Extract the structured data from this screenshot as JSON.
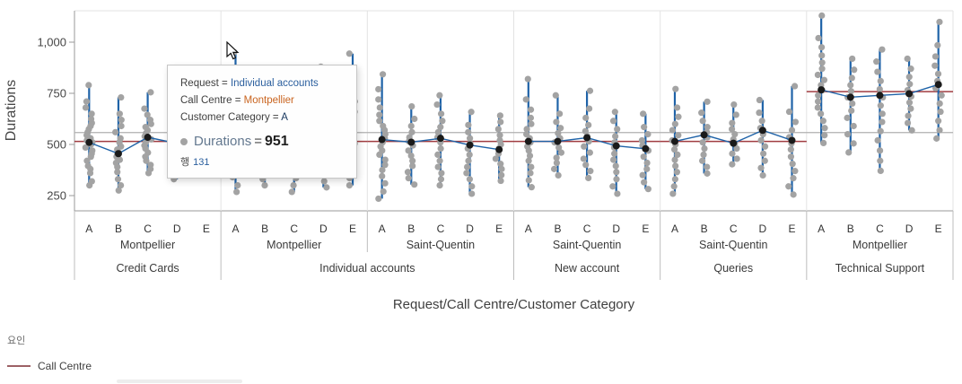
{
  "colors": {
    "point_gray": "#a3a3a3",
    "range_bar_blue": "#1f63a8",
    "mean_black": "#1a1a1a",
    "factor_line_red": "#a03c40",
    "reference_line_gray": "#b0b0b0",
    "grid_gray": "#e3e3e3",
    "axis_gray": "#9a9a9a",
    "legend_swatch": "#9d6165"
  },
  "tooltip": {
    "lines": [
      {
        "label": "Request =",
        "value": "Individual accounts"
      },
      {
        "label": "Call Centre =",
        "value": "Montpellier"
      },
      {
        "label": "Customer Category =",
        "value": "A"
      }
    ],
    "metric": {
      "name": "Durations",
      "eq": "=",
      "value": "951"
    },
    "row_label": "행",
    "row_value": "131"
  },
  "chart_data": {
    "type": "scatter",
    "title": "",
    "ylabel": "Durations",
    "xlabel": "Request/Call Centre/Customer Category",
    "ylim": [
      175,
      1153
    ],
    "y_ticks": [
      {
        "v": 250,
        "label": "250"
      },
      {
        "v": 500,
        "label": "500"
      },
      {
        "v": 750,
        "label": "750"
      },
      {
        "v": 1000,
        "label": "1,000"
      }
    ],
    "reference_line": 558,
    "legend": {
      "title": "요인",
      "items": [
        {
          "label": "Call Centre"
        }
      ]
    },
    "groups": [
      {
        "request": "Credit Cards",
        "call_centre": "Montpellier",
        "factor_line": 515,
        "categories": [
          {
            "label": "A",
            "mean": 510,
            "points": [
              300,
              320,
              360,
              380,
              395,
              420,
              440,
              455,
              470,
              485,
              500,
              510,
              520,
              530,
              545,
              560,
              575,
              590,
              605,
              625,
              650,
              680,
              710,
              790
            ]
          },
          {
            "label": "B",
            "mean": 455,
            "points": [
              275,
              300,
              330,
              365,
              390,
              410,
              425,
              440,
              450,
              460,
              475,
              490,
              510,
              530,
              560,
              590,
              620,
              650,
              730
            ]
          },
          {
            "label": "C",
            "mean": 535,
            "points": [
              360,
              380,
              400,
              420,
              440,
              460,
              480,
              495,
              510,
              525,
              540,
              555,
              570,
              585,
              600,
              620,
              645,
              675,
              755
            ]
          },
          {
            "label": "D",
            "mean": 505,
            "points": [
              330,
              360,
              390,
              415,
              435,
              455,
              475,
              495,
              515,
              535,
              555,
              575,
              600,
              630,
              670,
              740
            ]
          },
          {
            "label": "E",
            "mean": 510,
            "points": [
              360,
              385,
              410,
              430,
              450,
              470,
              490,
              510,
              530,
              550,
              570,
              595,
              625,
              660,
              750
            ]
          }
        ]
      },
      {
        "request": "Individual accounts",
        "call_centre": "Montpellier",
        "factor_line": 515,
        "categories": [
          {
            "label": "A",
            "mean": 515,
            "points": [
              268,
              300,
              340,
              370,
              395,
              415,
              435,
              455,
              475,
              495,
              515,
              535,
              555,
              575,
              600,
              630,
              665,
              705,
              760,
              951
            ]
          },
          {
            "label": "B",
            "mean": 505,
            "points": [
              300,
              330,
              360,
              390,
              415,
              435,
              455,
              475,
              495,
              515,
              535,
              560,
              590,
              625,
              700
            ]
          },
          {
            "label": "C",
            "mean": 510,
            "points": [
              268,
              300,
              335,
              365,
              390,
              415,
              440,
              465,
              490,
              515,
              540,
              565,
              595,
              630,
              675,
              750
            ]
          },
          {
            "label": "D",
            "mean": 520,
            "points": [
              290,
              320,
              350,
              380,
              410,
              440,
              465,
              490,
              515,
              540,
              565,
              595,
              630,
              670,
              720,
              880
            ]
          },
          {
            "label": "E",
            "mean": 520,
            "points": [
              300,
              335,
              365,
              395,
              425,
              455,
              480,
              505,
              530,
              555,
              585,
              620,
              660,
              710,
              790,
              944
            ]
          }
        ]
      },
      {
        "request": "Individual accounts",
        "call_centre": "Saint-Quentin",
        "factor_line": 515,
        "categories": [
          {
            "label": "A",
            "mean": 524,
            "points": [
              235,
              270,
              310,
              345,
              375,
              400,
              425,
              450,
              470,
              490,
              510,
              530,
              550,
              570,
              590,
              615,
              645,
              680,
              720,
              770,
              843
            ]
          },
          {
            "label": "B",
            "mean": 511,
            "points": [
              304,
              335,
              365,
              395,
              420,
              445,
              470,
              495,
              515,
              535,
              560,
              590,
              625,
              686
            ]
          },
          {
            "label": "C",
            "mean": 530,
            "points": [
              300,
              330,
              360,
              390,
              420,
              450,
              480,
              510,
              535,
              560,
              585,
              615,
              650,
              695,
              740
            ]
          },
          {
            "label": "D",
            "mean": 497,
            "points": [
              259,
              295,
              330,
              360,
              390,
              420,
              450,
              480,
              505,
              530,
              560,
              595,
              659
            ]
          },
          {
            "label": "E",
            "mean": 475,
            "points": [
              322,
              350,
              380,
              405,
              430,
              455,
              480,
              500,
              520,
              545,
              575,
              610,
              641
            ]
          }
        ]
      },
      {
        "request": "New account",
        "call_centre": "Saint-Quentin",
        "factor_line": 515,
        "categories": [
          {
            "label": "A",
            "mean": 515,
            "points": [
              291,
              325,
              360,
              390,
              420,
              445,
              470,
              490,
              510,
              530,
              550,
              575,
              600,
              630,
              670,
              720,
              820
            ]
          },
          {
            "label": "B",
            "mean": 515,
            "points": [
              349,
              380,
              410,
              435,
              460,
              485,
              510,
              530,
              555,
              580,
              610,
              650,
              740
            ]
          },
          {
            "label": "C",
            "mean": 533,
            "points": [
              336,
              370,
              400,
              430,
              460,
              490,
              515,
              540,
              565,
              595,
              630,
              675,
              762
            ]
          },
          {
            "label": "D",
            "mean": 493,
            "points": [
              259,
              295,
              330,
              365,
              395,
              425,
              455,
              485,
              510,
              540,
              575,
              615,
              659
            ]
          },
          {
            "label": "E",
            "mean": 479,
            "points": [
              282,
              315,
              350,
              380,
              410,
              440,
              470,
              495,
              520,
              550,
              585,
              650
            ]
          }
        ]
      },
      {
        "request": "Queries",
        "call_centre": "Saint-Quentin",
        "factor_line": 515,
        "categories": [
          {
            "label": "A",
            "mean": 515,
            "points": [
              259,
              295,
              330,
              365,
              395,
              425,
              450,
              475,
              500,
              520,
              545,
              570,
              600,
              635,
              680,
              771
            ]
          },
          {
            "label": "B",
            "mean": 547,
            "points": [
              358,
              390,
              420,
              450,
              480,
              510,
              535,
              560,
              585,
              615,
              655,
              709
            ]
          },
          {
            "label": "C",
            "mean": 506,
            "points": [
              403,
              430,
              455,
              480,
              505,
              525,
              550,
              575,
              605,
              645,
              695
            ]
          },
          {
            "label": "D",
            "mean": 569,
            "points": [
              349,
              385,
              420,
              455,
              490,
              520,
              550,
              580,
              615,
              655,
              717
            ]
          },
          {
            "label": "E",
            "mean": 520,
            "points": [
              255,
              295,
              335,
              370,
              405,
              440,
              475,
              505,
              535,
              570,
              610,
              660,
              785
            ]
          }
        ]
      },
      {
        "request": "Technical Support",
        "call_centre": "Montpellier",
        "factor_line": 758,
        "categories": [
          {
            "label": "A",
            "mean": 767,
            "points": [
              507,
              545,
              580,
              615,
              650,
              680,
              710,
              740,
              765,
              790,
              815,
              840,
              870,
              900,
              935,
              975,
              1020,
              1130
            ]
          },
          {
            "label": "B",
            "mean": 731,
            "points": [
              461,
              505,
              550,
              590,
              630,
              665,
              700,
              730,
              760,
              790,
              825,
              865,
              919
            ]
          },
          {
            "label": "C",
            "mean": 740,
            "points": [
              371,
              420,
              470,
              520,
              565,
              610,
              650,
              690,
              730,
              770,
              810,
              855,
              905,
              964
            ]
          },
          {
            "label": "D",
            "mean": 748,
            "points": [
              569,
              605,
              640,
              675,
              705,
              735,
              765,
              795,
              830,
              870,
              919
            ]
          },
          {
            "label": "E",
            "mean": 793,
            "points": [
              529,
              570,
              615,
              660,
              700,
              740,
              775,
              810,
              845,
              885,
              930,
              985,
              1099
            ]
          }
        ]
      }
    ]
  }
}
